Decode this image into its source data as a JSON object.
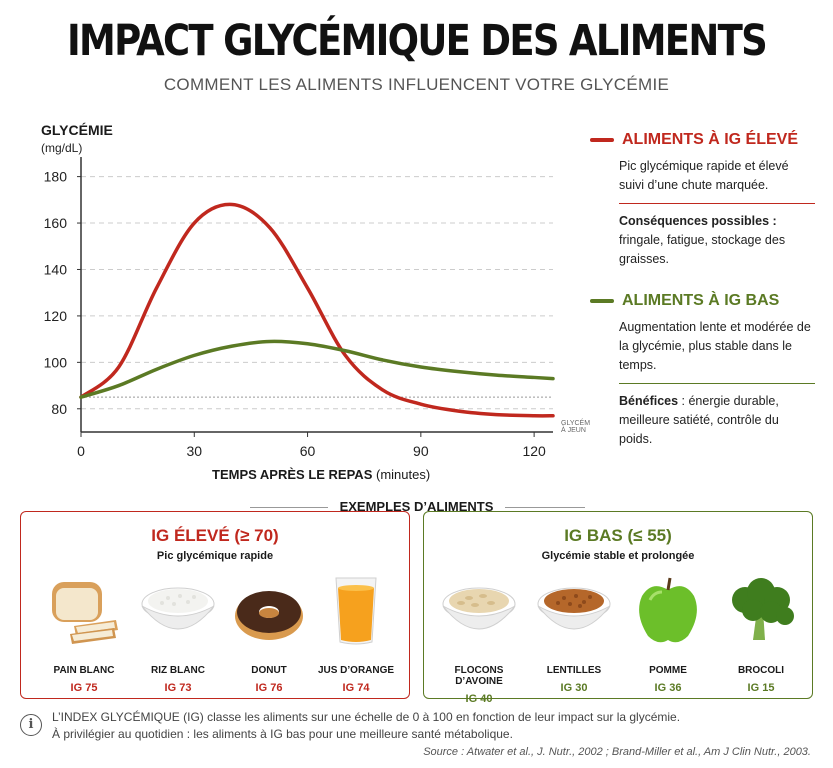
{
  "header": {
    "title": "IMPACT GLYCÉMIQUE DES ALIMENTS",
    "subtitle": "COMMENT LES ALIMENTS INFLUENCENT VOTRE GLYCÉMIE"
  },
  "colors": {
    "high": "#c0281e",
    "low": "#5b7a24",
    "grid": "#cccccc",
    "axis": "#333333"
  },
  "chart_data": {
    "type": "line",
    "ylabel": "GLYCÉMIE",
    "yunit": "(mg/dL)",
    "xlabel": "TEMPS APRÈS LE REPAS",
    "xunit": "(minutes)",
    "xlim": [
      0,
      125
    ],
    "ylim": [
      70,
      185
    ],
    "xticks": [
      0,
      30,
      60,
      90,
      120
    ],
    "yticks": [
      80,
      100,
      120,
      140,
      160,
      180
    ],
    "grid": "horizontal dashed",
    "fasting_label": [
      "GLYCÉMIE",
      "À JEUN"
    ],
    "fasting_value": 85,
    "series": [
      {
        "name": "ALIMENTS À IG ÉLEVÉ",
        "color": "#c0281e",
        "x": [
          0,
          10,
          20,
          30,
          40,
          50,
          60,
          70,
          80,
          90,
          100,
          110,
          120,
          125
        ],
        "y": [
          85,
          98,
          132,
          160,
          168,
          158,
          132,
          103,
          88,
          82,
          79,
          77.5,
          77,
          77
        ]
      },
      {
        "name": "ALIMENTS À IG BAS",
        "color": "#5b7a24",
        "x": [
          0,
          10,
          20,
          30,
          40,
          50,
          60,
          70,
          80,
          90,
          100,
          110,
          120,
          125
        ],
        "y": [
          85,
          90,
          97,
          103,
          107,
          109,
          108,
          105,
          101,
          98,
          96,
          94.5,
          93.5,
          93
        ]
      }
    ]
  },
  "legend": {
    "high": {
      "title": "ALIMENTS À IG ÉLEVÉ",
      "desc": "Pic glycémique rapide et élevé suivi d’une chute marquée.",
      "cons_label": "Conséquences possibles :",
      "cons_text": "fringale, fatigue, stockage des graisses."
    },
    "low": {
      "title": "ALIMENTS À IG BAS",
      "desc": "Augmentation lente et modérée de la glycémie, plus stable dans le temps.",
      "ben_label": "Bénéfices",
      "ben_text": " : énergie durable, meilleure satiété, contrôle du poids."
    }
  },
  "examples": {
    "title": "EXEMPLES D’ALIMENTS",
    "high": {
      "title": "IG ÉLEVÉ (≥ 70)",
      "subtitle": "Pic glycémique rapide",
      "foods": [
        {
          "name": "PAIN BLANC",
          "ig": "IG 75",
          "icon": "bread-icon"
        },
        {
          "name": "RIZ BLANC",
          "ig": "IG 73",
          "icon": "rice-bowl-icon"
        },
        {
          "name": "DONUT",
          "ig": "IG 76",
          "icon": "donut-icon"
        },
        {
          "name": "JUS D’ORANGE",
          "ig": "IG 74",
          "icon": "orange-juice-icon"
        }
      ]
    },
    "low": {
      "title": "IG BAS (≤ 55)",
      "subtitle": "Glycémie stable et prolongée",
      "foods": [
        {
          "name": "FLOCONS D’AVOINE",
          "ig": "IG 40",
          "icon": "oat-bowl-icon"
        },
        {
          "name": "LENTILLES",
          "ig": "IG 30",
          "icon": "lentil-bowl-icon"
        },
        {
          "name": "POMME",
          "ig": "IG 36",
          "icon": "apple-icon"
        },
        {
          "name": "BROCOLI",
          "ig": "IG 15",
          "icon": "broccoli-icon"
        }
      ]
    }
  },
  "footer": {
    "line1": "L’INDEX GLYCÉMIQUE (IG) classe les aliments sur une échelle de 0 à 100 en fonction de leur impact sur la glycémie.",
    "line2": "À privilégier au quotidien : les aliments à IG bas pour une meilleure santé métabolique.",
    "source": "Source : Atwater et al., J. Nutr., 2002 ; Brand-Miller et al., Am J Clin Nutr., 2003."
  }
}
